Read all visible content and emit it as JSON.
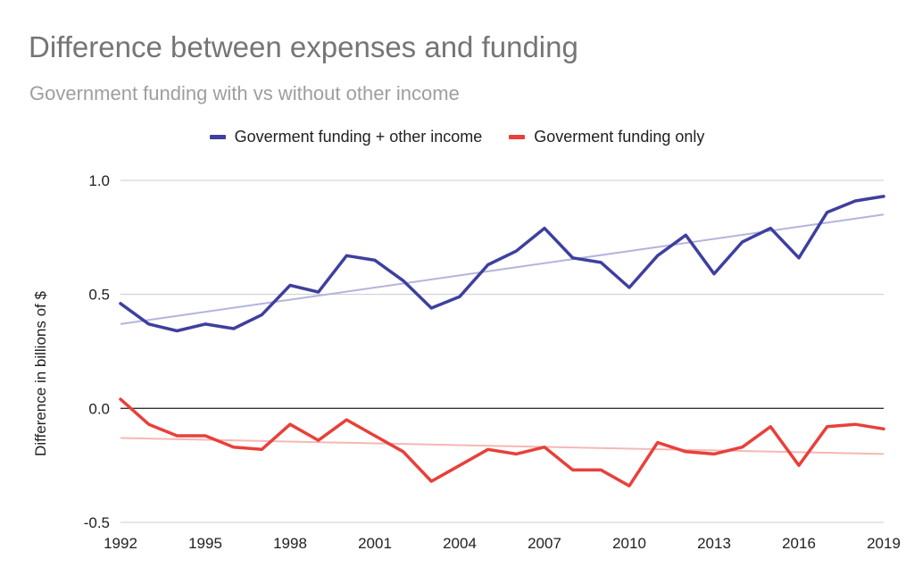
{
  "chart_data": {
    "type": "line",
    "title": "Difference between expenses and funding",
    "subtitle": "Government funding with vs without other income",
    "xlabel": "",
    "ylabel": "Difference in billions of $",
    "ylim": [
      -0.5,
      1.0
    ],
    "xlim": [
      1992,
      2019
    ],
    "yticks": [
      1.0,
      0.5,
      0.0,
      -0.5
    ],
    "ytick_labels": [
      "1.0",
      "0.5",
      "0.0",
      "-0.5"
    ],
    "xticks": [
      "1992",
      "1995",
      "1998",
      "2001",
      "2004",
      "2007",
      "2010",
      "2013",
      "2016",
      "2019"
    ],
    "grid": true,
    "legend": "top",
    "x": [
      1992,
      1993,
      1994,
      1995,
      1996,
      1997,
      1998,
      1999,
      2000,
      2001,
      2002,
      2003,
      2004,
      2005,
      2006,
      2007,
      2008,
      2009,
      2010,
      2011,
      2012,
      2013,
      2014,
      2015,
      2016,
      2017,
      2018,
      2019
    ],
    "series": [
      {
        "name": "Goverment funding + other income",
        "color": "#3f3f9f",
        "trend_color": "#b4b4dc",
        "values": [
          0.46,
          0.37,
          0.34,
          0.37,
          0.35,
          0.41,
          0.54,
          0.51,
          0.67,
          0.65,
          0.56,
          0.44,
          0.49,
          0.63,
          0.69,
          0.79,
          0.66,
          0.64,
          0.53,
          0.67,
          0.76,
          0.59,
          0.73,
          0.79,
          0.66,
          0.86,
          0.91,
          0.93
        ],
        "trendline": [
          0.37,
          0.85
        ]
      },
      {
        "name": "Goverment funding only",
        "color": "#e8403a",
        "trend_color": "#f4b8b4",
        "values": [
          0.04,
          -0.07,
          -0.12,
          -0.12,
          -0.17,
          -0.18,
          -0.07,
          -0.14,
          -0.05,
          -0.12,
          -0.19,
          -0.32,
          -0.25,
          -0.18,
          -0.2,
          -0.17,
          -0.27,
          -0.27,
          -0.34,
          -0.15,
          -0.19,
          -0.2,
          -0.17,
          -0.08,
          -0.25,
          -0.08,
          -0.07,
          -0.09
        ],
        "trendline": [
          -0.13,
          -0.2
        ]
      }
    ]
  }
}
